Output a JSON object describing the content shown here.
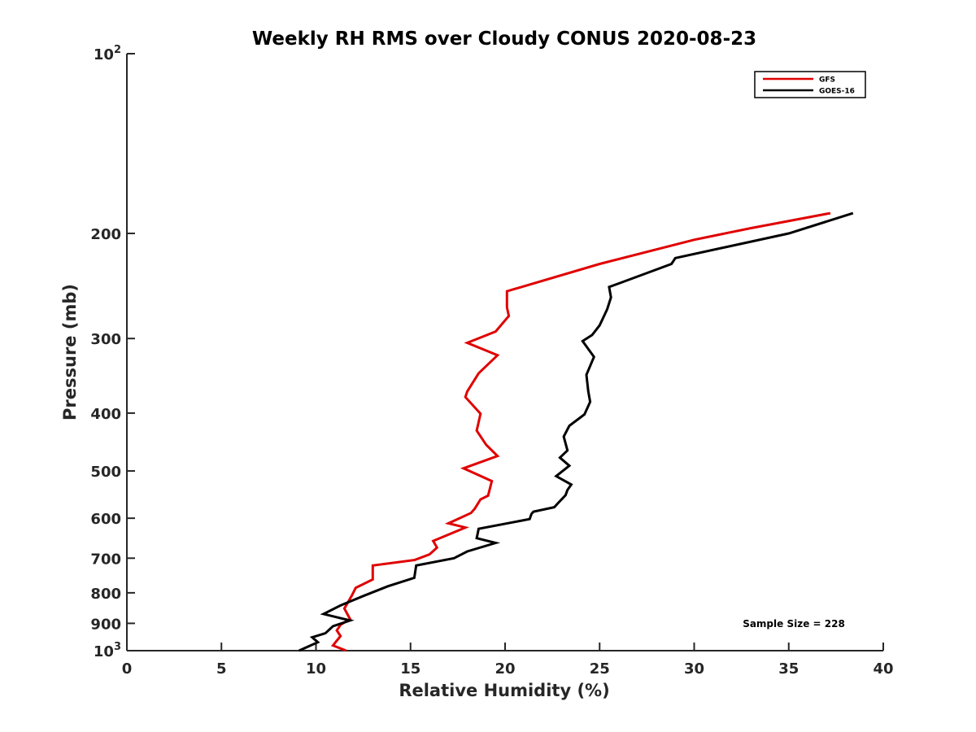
{
  "chart_data": {
    "type": "line",
    "title": "Weekly RH RMS over Cloudy CONUS 2020-08-23",
    "xlabel": "Relative Humidity (%)",
    "ylabel": "Pressure (mb)",
    "xlim": [
      0,
      40
    ],
    "ylim": [
      100,
      1000
    ],
    "yscale": "log",
    "y_reversed": true,
    "x_ticks": [
      0,
      5,
      10,
      15,
      20,
      25,
      30,
      35,
      40
    ],
    "x_tick_labels": [
      "0",
      "5",
      "10",
      "15",
      "20",
      "25",
      "30",
      "35",
      "40"
    ],
    "y_ticks": [
      100,
      200,
      300,
      400,
      500,
      600,
      700,
      800,
      900,
      1000
    ],
    "y_tick_labels": [
      {
        "base": "10",
        "sup": "2"
      },
      {
        "base": "200",
        "sup": ""
      },
      {
        "base": "300",
        "sup": ""
      },
      {
        "base": "400",
        "sup": ""
      },
      {
        "base": "500",
        "sup": ""
      },
      {
        "base": "600",
        "sup": ""
      },
      {
        "base": "700",
        "sup": ""
      },
      {
        "base": "800",
        "sup": ""
      },
      {
        "base": "900",
        "sup": ""
      },
      {
        "base": "10",
        "sup": "3"
      }
    ],
    "grid": false,
    "legend_position": "top-right",
    "annotation": "Sample Size = 228",
    "series": [
      {
        "name": "GFS",
        "color": "#e00000",
        "x": [
          37.2,
          33,
          30,
          25,
          20.1,
          20.1,
          20.2,
          19.5,
          18.0,
          19.6,
          18.6,
          18.0,
          17.9,
          18.7,
          18.5,
          19.0,
          19.6,
          17.8,
          19.3,
          19.1,
          18.7,
          18.4,
          18.2,
          17.0,
          17.9,
          16.2,
          16.4,
          16.0,
          15.2,
          13.0,
          13.0,
          12.1,
          11.9,
          11.5,
          11.8,
          11.3,
          11.1,
          11.3,
          10.9,
          11.6
        ],
        "y": [
          185,
          196,
          205,
          225,
          250,
          266,
          275,
          292,
          305,
          320,
          343,
          368,
          376,
          401,
          428,
          452,
          472,
          495,
          520,
          550,
          558,
          578,
          588,
          612,
          622,
          655,
          672,
          690,
          705,
          720,
          760,
          785,
          808,
          850,
          885,
          905,
          925,
          945,
          980,
          1000
        ]
      },
      {
        "name": "GOES-16",
        "color": "#000000",
        "x": [
          38.4,
          35,
          29,
          28.8,
          25.5,
          25.6,
          25.4,
          25.0,
          24.6,
          24.1,
          24.7,
          24.3,
          24.4,
          24.5,
          24.2,
          23.4,
          23.1,
          23.3,
          22.9,
          23.4,
          22.7,
          23.5,
          23.3,
          23.2,
          22.8,
          22.6,
          21.5,
          21.4,
          21.3,
          18.6,
          18.5,
          19.5,
          18.0,
          17.3,
          15.3,
          15.2,
          13.8,
          12.5,
          11.3,
          10.4,
          11.8,
          10.9,
          10.5,
          9.8,
          10.1,
          9.1
        ],
        "y": [
          185,
          200,
          220,
          225,
          246,
          256,
          268,
          285,
          296,
          303,
          322,
          345,
          368,
          383,
          402,
          420,
          438,
          462,
          475,
          490,
          510,
          527,
          538,
          549,
          566,
          575,
          585,
          590,
          602,
          625,
          648,
          660,
          682,
          700,
          720,
          755,
          780,
          810,
          840,
          868,
          890,
          910,
          935,
          950,
          968,
          1000
        ]
      }
    ]
  }
}
